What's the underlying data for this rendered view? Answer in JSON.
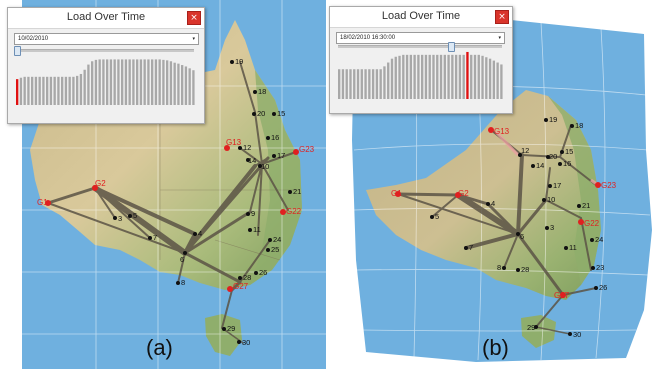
{
  "panels": [
    {
      "caption": "(a)",
      "popup": {
        "title": "Load Over Time",
        "close_label": "×",
        "date_value": "10/02/2010",
        "dropdown_caret": "▾",
        "slider_position": 0.0,
        "highlight_index": 0,
        "load_values": [
          0.55,
          0.58,
          0.6,
          0.6,
          0.6,
          0.6,
          0.6,
          0.6,
          0.6,
          0.6,
          0.6,
          0.6,
          0.6,
          0.6,
          0.6,
          0.6,
          0.62,
          0.66,
          0.75,
          0.86,
          0.93,
          0.96,
          0.97,
          0.97,
          0.97,
          0.97,
          0.97,
          0.97,
          0.97,
          0.97,
          0.97,
          0.97,
          0.97,
          0.97,
          0.97,
          0.97,
          0.97,
          0.97,
          0.97,
          0.96,
          0.95,
          0.93,
          0.9,
          0.88,
          0.85,
          0.82,
          0.78,
          0.74
        ]
      },
      "nodes": [
        "19",
        "18",
        "20",
        "15",
        "16",
        "12",
        "17",
        "14",
        "10",
        "21",
        "9",
        "11",
        "24",
        "25",
        "26",
        "28",
        "8",
        "6",
        "4",
        "7",
        "5",
        "3",
        "29",
        "30"
      ],
      "gateways": [
        "G13",
        "G23",
        "G2",
        "G1",
        "G22",
        "G27"
      ]
    },
    {
      "caption": "(b)",
      "popup": {
        "title": "Load Over Time",
        "close_label": "×",
        "date_value": "18/02/2010 16:30:00",
        "dropdown_caret": "▾",
        "slider_position": 0.72,
        "highlight_index": 34,
        "load_values": [
          0.62,
          0.62,
          0.62,
          0.62,
          0.62,
          0.62,
          0.62,
          0.62,
          0.62,
          0.62,
          0.62,
          0.62,
          0.68,
          0.76,
          0.84,
          0.88,
          0.9,
          0.92,
          0.92,
          0.92,
          0.92,
          0.92,
          0.92,
          0.92,
          0.92,
          0.92,
          0.92,
          0.92,
          0.92,
          0.92,
          0.92,
          0.92,
          0.92,
          0.92,
          0.98,
          0.92,
          0.92,
          0.92,
          0.9,
          0.87,
          0.84,
          0.8,
          0.76,
          0.72
        ]
      },
      "nodes": [
        "19",
        "18",
        "20",
        "15",
        "16",
        "12",
        "14",
        "17",
        "10",
        "21",
        "3",
        "11",
        "24",
        "23",
        "26",
        "28",
        "8",
        "6",
        "4",
        "7",
        "5",
        "29",
        "30"
      ],
      "gateways": [
        "G13",
        "G23",
        "G2",
        "G1",
        "G22",
        "G27"
      ]
    }
  ],
  "colors": {
    "ocean": "#6fb0df",
    "land_light": "#d6c79c",
    "land_green": "#8fae6c",
    "edge": "#5c5446",
    "gateway": "#e02020",
    "node": "#111111",
    "bar": "#a8a8a8",
    "bar_highlight": "#e01010"
  }
}
